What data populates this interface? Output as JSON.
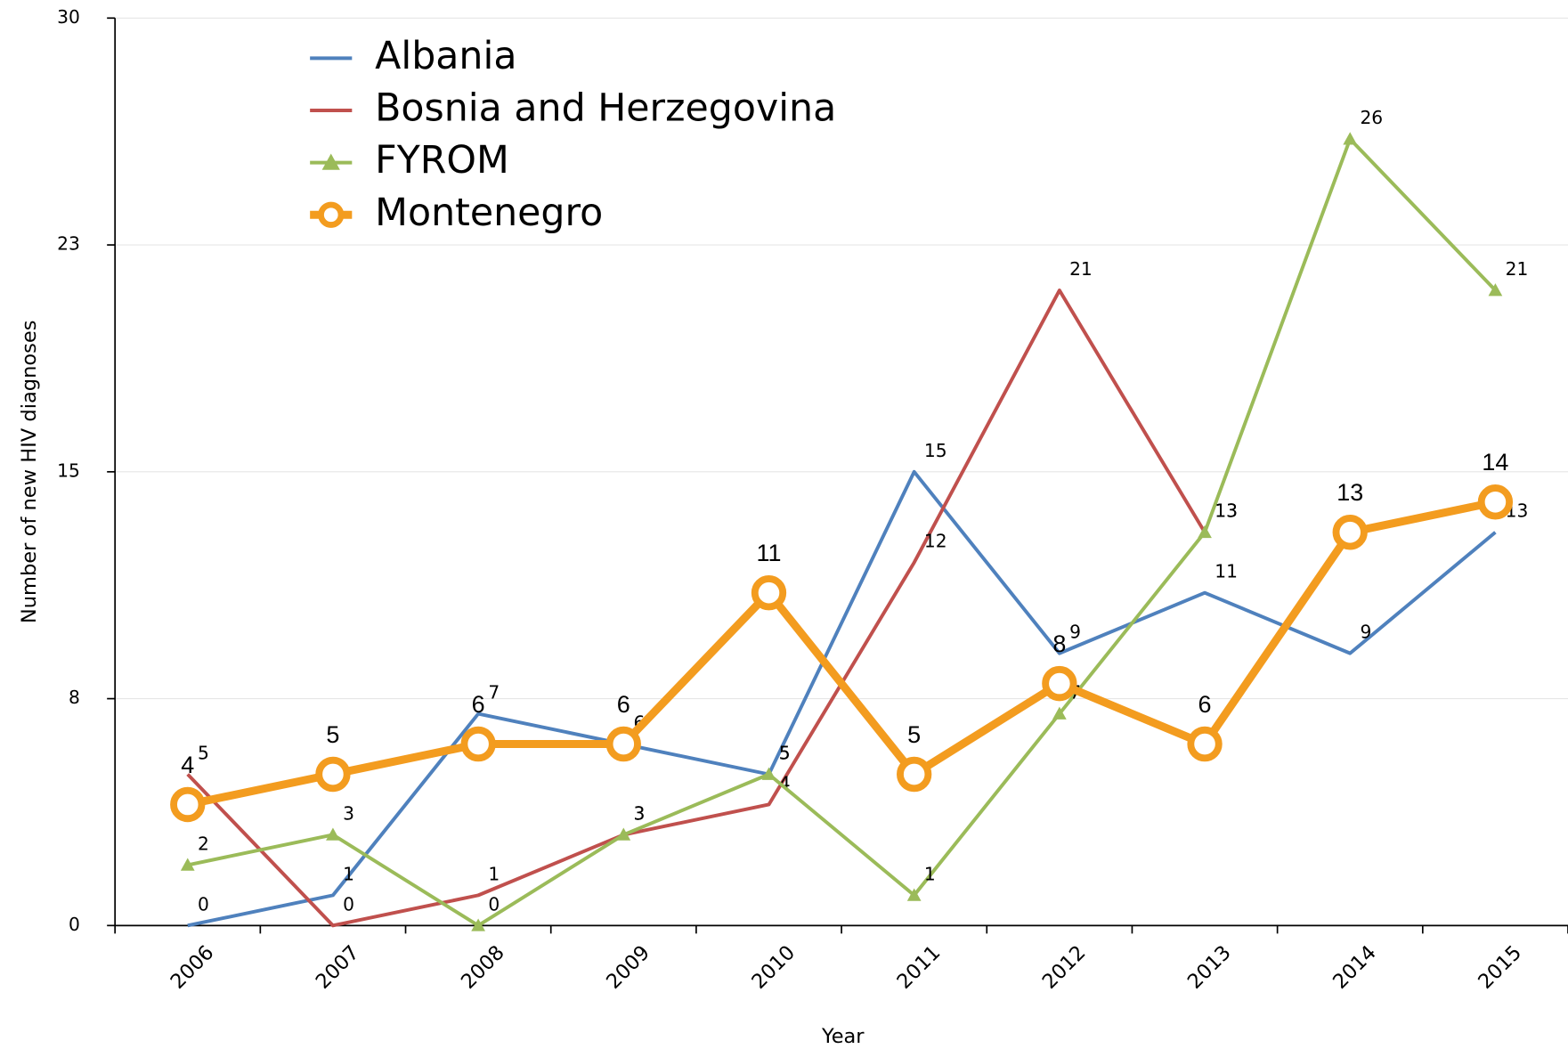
{
  "chart_data": {
    "type": "line",
    "x_label": "Year",
    "y_label": "Number of new HIV diagnoses",
    "categories": [
      "2006",
      "2007",
      "2008",
      "2009",
      "2010",
      "2011",
      "2012",
      "2013",
      "2014",
      "2015"
    ],
    "series": [
      {
        "name": "Albania",
        "color": "#4f81bd",
        "marker": "none",
        "values": [
          0,
          1,
          7,
          6,
          5,
          15,
          9,
          11,
          9,
          13
        ]
      },
      {
        "name": "Bosnia and Herzegovina",
        "color": "#c0504d",
        "marker": "none",
        "values": [
          5,
          0,
          1,
          3,
          4,
          12,
          21,
          13,
          null,
          null
        ]
      },
      {
        "name": "FYROM",
        "color": "#9bbb59",
        "marker": "triangle",
        "values": [
          2,
          3,
          0,
          3,
          5,
          1,
          7,
          13,
          26,
          21
        ]
      },
      {
        "name": "Montenegro",
        "color": "#f39c1f",
        "marker": "circle",
        "values": [
          4,
          5,
          6,
          6,
          11,
          5,
          8,
          6,
          13,
          14
        ]
      }
    ],
    "ylim": [
      0,
      30
    ],
    "yticks": [
      0,
      {
        "value": 7.5,
        "label": "8"
      },
      15,
      {
        "value": 22.5,
        "label": "23"
      },
      30
    ],
    "grid": true,
    "legend": "top-left"
  }
}
